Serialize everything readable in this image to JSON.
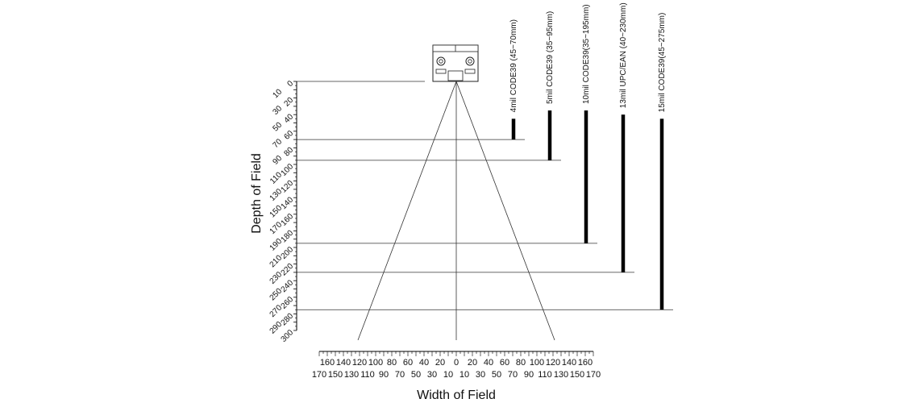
{
  "chart_data": {
    "type": "bar",
    "title": "",
    "xlabel": "Width of Field",
    "ylabel": "Depth of Field",
    "xlim": [
      -170,
      170
    ],
    "ylim": [
      0,
      300
    ],
    "depth_ticks": [
      0,
      10,
      20,
      30,
      40,
      50,
      60,
      70,
      80,
      90,
      100,
      110,
      120,
      130,
      140,
      150,
      160,
      170,
      180,
      190,
      200,
      210,
      220,
      230,
      240,
      250,
      260,
      270,
      280,
      290,
      300
    ],
    "width_ticks_upper": [
      "160",
      "140",
      "120",
      "100",
      "80",
      "60",
      "40",
      "20",
      "0",
      "20",
      "40",
      "60",
      "80",
      "100",
      "120",
      "140",
      "160"
    ],
    "width_ticks_lower": [
      "170",
      "150",
      "130",
      "110",
      "90",
      "70",
      "50",
      "30",
      "10",
      "10",
      "30",
      "50",
      "70",
      "90",
      "110",
      "130",
      "150",
      "170"
    ],
    "series": [
      {
        "name": "4mil CODE39  (45~70mm)",
        "min": 45,
        "max": 70
      },
      {
        "name": "5mil CODE39  (35~95mm)",
        "min": 35,
        "max": 95
      },
      {
        "name": "10mil CODE39(35~195mm)",
        "min": 35,
        "max": 195
      },
      {
        "name": "13mil UPC/EAN (40~230mm)",
        "min": 40,
        "max": 230
      },
      {
        "name": "15mil CODE39(45~275mm)",
        "min": 45,
        "max": 275
      }
    ],
    "field_of_view": {
      "depth": 300,
      "half_width": 122
    },
    "colors": {
      "ink": "#000000",
      "line": "#333333"
    }
  }
}
